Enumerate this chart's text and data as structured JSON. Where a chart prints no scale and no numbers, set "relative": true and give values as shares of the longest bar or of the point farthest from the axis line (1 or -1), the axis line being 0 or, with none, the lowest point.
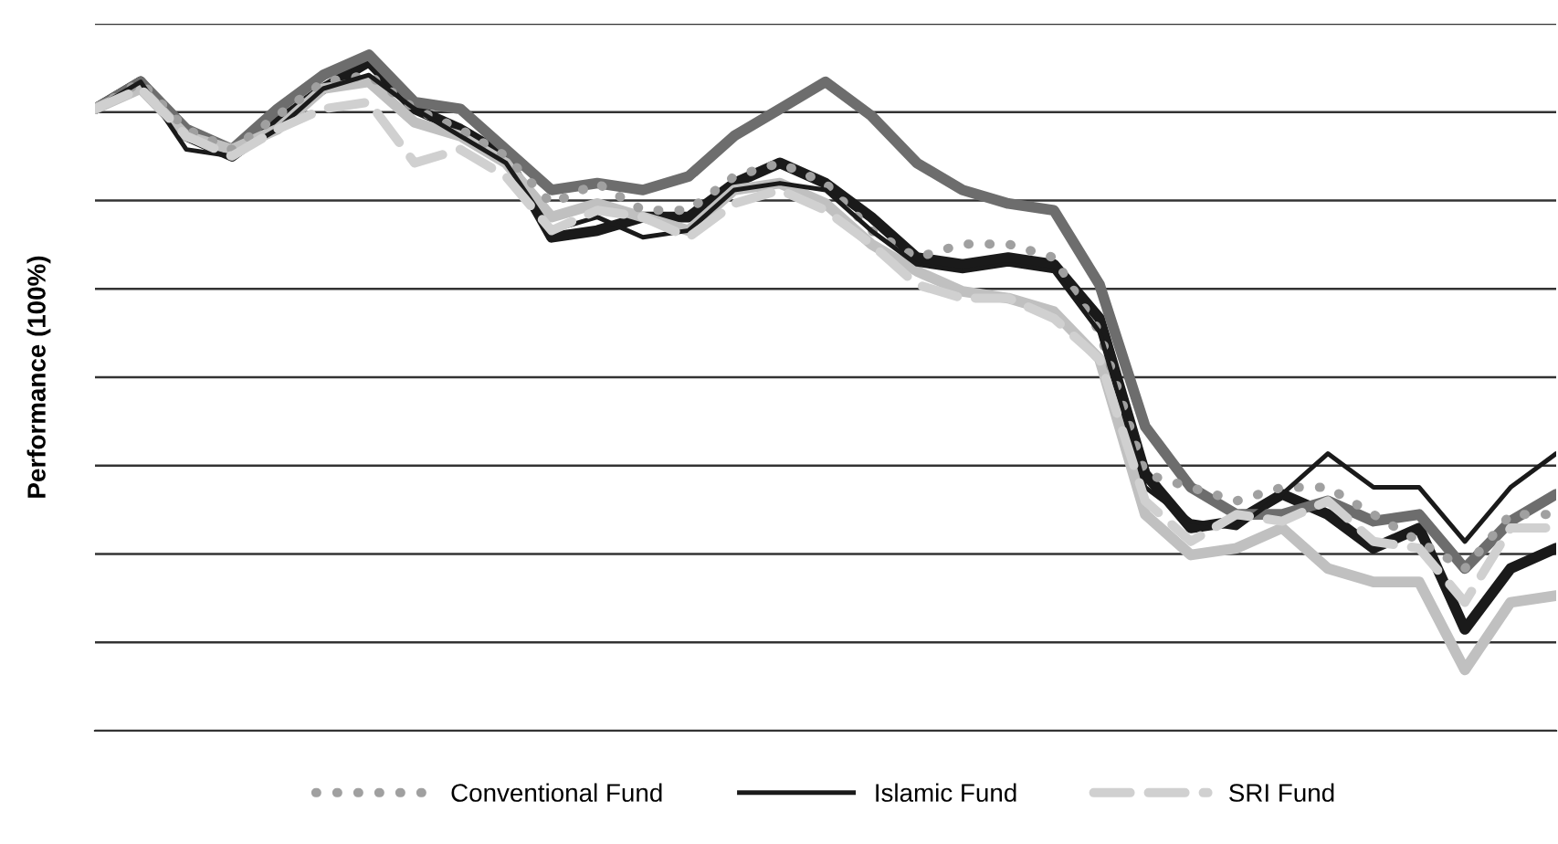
{
  "chart_data": {
    "type": "line",
    "ylabel": "Performance (100%)",
    "relative": true,
    "grid": "y",
    "legend": "bottom",
    "categories": [
      null,
      null,
      null,
      null,
      null,
      null,
      null,
      null,
      null,
      null,
      null,
      null,
      null,
      null,
      null,
      null,
      null,
      null,
      null,
      null,
      null,
      null,
      null,
      null,
      null,
      null,
      null,
      null,
      null,
      null,
      null,
      null,
      null
    ],
    "series": [
      {
        "color": "#1a1a1a",
        "line_style": "solid",
        "values": [
          0.92,
          0.96,
          0.88,
          0.85,
          0.9,
          0.95,
          0.99,
          0.92,
          0.89,
          0.85,
          0.73,
          0.74,
          0.76,
          0.76,
          0.81,
          0.84,
          0.81,
          0.76,
          0.7,
          0.69,
          0.7,
          0.69,
          0.61,
          0.38,
          0.3,
          0.31,
          0.35,
          0.32,
          0.27,
          0.3,
          0.15,
          0.24,
          0.27
        ]
      },
      {
        "color": "#6d6d6d",
        "line_style": "solid",
        "values": [
          0.92,
          0.96,
          0.89,
          0.86,
          0.92,
          0.97,
          1.0,
          0.93,
          0.92,
          0.86,
          0.8,
          0.81,
          0.8,
          0.82,
          0.88,
          0.92,
          0.96,
          0.91,
          0.84,
          0.8,
          0.78,
          0.77,
          0.66,
          0.45,
          0.36,
          0.32,
          0.32,
          0.34,
          0.31,
          0.32,
          0.24,
          0.31,
          0.35
        ]
      },
      {
        "color": "#c0c0c0",
        "line_style": "solid",
        "values": [
          0.92,
          0.95,
          0.88,
          0.86,
          0.89,
          0.95,
          0.96,
          0.9,
          0.88,
          0.84,
          0.76,
          0.78,
          0.76,
          0.74,
          0.8,
          0.81,
          0.78,
          0.72,
          0.68,
          0.65,
          0.64,
          0.62,
          0.55,
          0.32,
          0.26,
          0.27,
          0.3,
          0.24,
          0.22,
          0.22,
          0.09,
          0.19,
          0.2
        ]
      },
      {
        "name": "Conventional Fund",
        "color": "#a0a0a0",
        "line_style": "dotted",
        "values": [
          0.92,
          0.96,
          0.89,
          0.86,
          0.91,
          0.96,
          0.97,
          0.92,
          0.89,
          0.85,
          0.78,
          0.81,
          0.77,
          0.77,
          0.82,
          0.84,
          0.81,
          0.74,
          0.7,
          0.72,
          0.72,
          0.7,
          0.59,
          0.38,
          0.36,
          0.34,
          0.36,
          0.36,
          0.32,
          0.28,
          0.24,
          0.32,
          0.32
        ]
      },
      {
        "name": "Islamic Fund",
        "color": "#1a1a1a",
        "line_style": "solid",
        "values": [
          0.92,
          0.96,
          0.86,
          0.85,
          0.89,
          0.95,
          0.97,
          0.92,
          0.88,
          0.84,
          0.74,
          0.76,
          0.73,
          0.74,
          0.8,
          0.81,
          0.8,
          0.74,
          0.69,
          0.68,
          0.69,
          0.68,
          0.59,
          0.36,
          0.31,
          0.3,
          0.35,
          0.41,
          0.36,
          0.36,
          0.28,
          0.36,
          0.41
        ]
      },
      {
        "name": "SRI Fund",
        "color": "#d0d0d0",
        "line_style": "dashed",
        "values": [
          0.92,
          0.95,
          0.88,
          0.85,
          0.89,
          0.92,
          0.93,
          0.84,
          0.86,
          0.82,
          0.74,
          0.77,
          0.76,
          0.73,
          0.78,
          0.8,
          0.77,
          0.72,
          0.66,
          0.64,
          0.64,
          0.61,
          0.55,
          0.34,
          0.28,
          0.32,
          0.31,
          0.34,
          0.28,
          0.27,
          0.19,
          0.3,
          0.3
        ]
      }
    ]
  }
}
